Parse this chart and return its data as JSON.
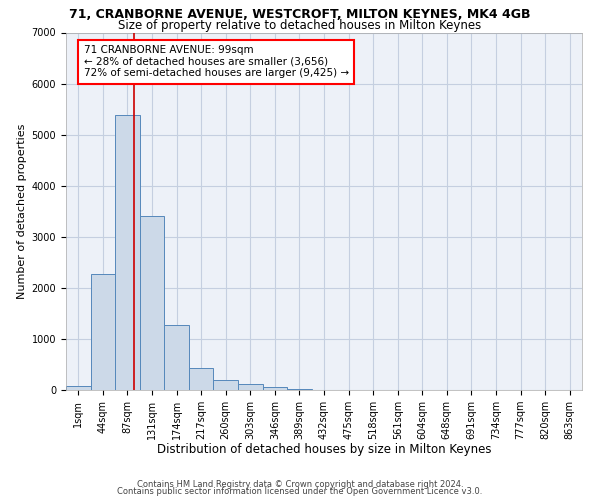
{
  "title1": "71, CRANBORNE AVENUE, WESTCROFT, MILTON KEYNES, MK4 4GB",
  "title2": "Size of property relative to detached houses in Milton Keynes",
  "xlabel": "Distribution of detached houses by size in Milton Keynes",
  "ylabel": "Number of detached properties",
  "bar_values": [
    75,
    2280,
    5380,
    3400,
    1280,
    440,
    190,
    115,
    65,
    25,
    0,
    0,
    0,
    0,
    0,
    0,
    0,
    0,
    0,
    0,
    0
  ],
  "x_labels": [
    "1sqm",
    "44sqm",
    "87sqm",
    "131sqm",
    "174sqm",
    "217sqm",
    "260sqm",
    "303sqm",
    "346sqm",
    "389sqm",
    "432sqm",
    "475sqm",
    "518sqm",
    "561sqm",
    "604sqm",
    "648sqm",
    "691sqm",
    "734sqm",
    "777sqm",
    "820sqm",
    "863sqm"
  ],
  "bar_color": "#ccd9e8",
  "bar_edge_color": "#5588bb",
  "bar_edge_width": 0.7,
  "grid_color": "#c5cfe0",
  "bg_color": "#edf1f8",
  "ylim": [
    0,
    7000
  ],
  "yticks": [
    0,
    1000,
    2000,
    3000,
    4000,
    5000,
    6000,
    7000
  ],
  "property_line_color": "#cc0000",
  "annotation_line1": "71 CRANBORNE AVENUE: 99sqm",
  "annotation_line2": "← 28% of detached houses are smaller (3,656)",
  "annotation_line3": "72% of semi-detached houses are larger (9,425) →",
  "footer1": "Contains HM Land Registry data © Crown copyright and database right 2024.",
  "footer2": "Contains public sector information licensed under the Open Government Licence v3.0.",
  "title1_fontsize": 9,
  "title2_fontsize": 8.5,
  "xlabel_fontsize": 8.5,
  "ylabel_fontsize": 8,
  "tick_fontsize": 7,
  "annotation_fontsize": 7.5,
  "footer_fontsize": 6
}
